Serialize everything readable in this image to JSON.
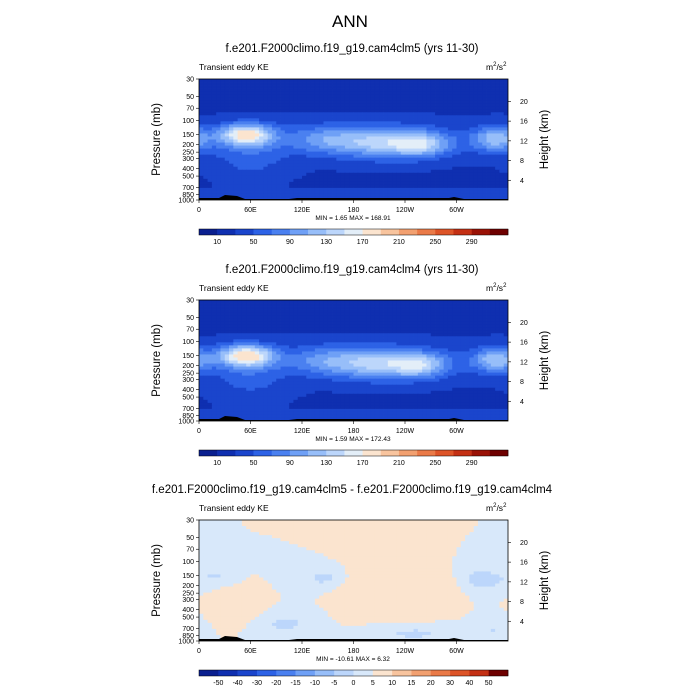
{
  "page": {
    "title": "ANN",
    "background": "#ffffff"
  },
  "chart_data": [
    {
      "type": "heatmap",
      "title": "f.e201.F2000climo.f19_g19.cam4clm5 (yrs 11-30)",
      "field_label": "Transient eddy KE",
      "units_base": "m",
      "units_exp1": "2",
      "units_mid": "/s",
      "units_exp2": "2",
      "ylabel": "Pressure (mb)",
      "ylabel_right": "Height (km)",
      "x_ticks": [
        "0",
        "60E",
        "120E",
        "180",
        "120W",
        "60W"
      ],
      "xlim": [
        0,
        360
      ],
      "y_ticks": [
        "30",
        "50",
        "70",
        "100",
        "150",
        "200",
        "250",
        "300",
        "400",
        "500",
        "700",
        "850",
        "1000"
      ],
      "y_scale": "log",
      "ylim": [
        1000,
        30
      ],
      "height_ticks": [
        "4",
        "8",
        "12",
        "16",
        "20"
      ],
      "stats": "MIN =   1.65   MAX = 168.91",
      "colorbar_labels": [
        "10",
        "50",
        "90",
        "130",
        "170",
        "210",
        "250",
        "290"
      ],
      "colorbar_colors": [
        "#0a1f8f",
        "#0f2fb0",
        "#1a45cc",
        "#2d62e6",
        "#4a80f0",
        "#6fa0f6",
        "#97bef9",
        "#bcd6fb",
        "#e3eef8",
        "#fbe4cf",
        "#f8c49e",
        "#f2a070",
        "#ea7a48",
        "#dd5428",
        "#c43014",
        "#9a1206",
        "#6e0000"
      ],
      "plot_levels": [
        0,
        10,
        30,
        50,
        70,
        90,
        110,
        130,
        150,
        170
      ],
      "plot_colors": [
        "#0d1f8a",
        "#0f2fb0",
        "#1a45cc",
        "#2d62e6",
        "#4a80f0",
        "#6fa0f6",
        "#97bef9",
        "#bcd6fb",
        "#e3eef8",
        "#fbe4cf"
      ],
      "features": [
        {
          "lon": 55,
          "p": 150,
          "amp": 140,
          "slon": 22,
          "sp": 0.22
        },
        {
          "lon": 215,
          "p": 190,
          "amp": 90,
          "slon": 40,
          "sp": 0.32
        },
        {
          "lon": 260,
          "p": 200,
          "amp": 70,
          "slon": 22,
          "sp": 0.25
        },
        {
          "lon": 345,
          "p": 170,
          "amp": 80,
          "slon": 18,
          "sp": 0.25
        },
        {
          "lon": 145,
          "p": 170,
          "amp": 45,
          "slon": 30,
          "sp": 0.3
        },
        {
          "lon": 60,
          "p": 300,
          "amp": 30,
          "slon": 30,
          "sp": 0.4
        }
      ]
    },
    {
      "type": "heatmap",
      "title": "f.e201.F2000climo.f19_g19.cam4clm4 (yrs 11-30)",
      "field_label": "Transient eddy KE",
      "units_base": "m",
      "units_exp1": "2",
      "units_mid": "/s",
      "units_exp2": "2",
      "ylabel": "Pressure (mb)",
      "ylabel_right": "Height (km)",
      "x_ticks": [
        "0",
        "60E",
        "120E",
        "180",
        "120W",
        "60W"
      ],
      "xlim": [
        0,
        360
      ],
      "y_ticks": [
        "30",
        "50",
        "70",
        "100",
        "150",
        "200",
        "250",
        "300",
        "400",
        "500",
        "700",
        "850",
        "1000"
      ],
      "y_scale": "log",
      "ylim": [
        1000,
        30
      ],
      "height_ticks": [
        "4",
        "8",
        "12",
        "16",
        "20"
      ],
      "stats": "MIN =   1.59   MAX = 172.43",
      "colorbar_labels": [
        "10",
        "50",
        "90",
        "130",
        "170",
        "210",
        "250",
        "290"
      ],
      "colorbar_colors": [
        "#0a1f8f",
        "#0f2fb0",
        "#1a45cc",
        "#2d62e6",
        "#4a80f0",
        "#6fa0f6",
        "#97bef9",
        "#bcd6fb",
        "#e3eef8",
        "#fbe4cf",
        "#f8c49e",
        "#f2a070",
        "#ea7a48",
        "#dd5428",
        "#c43014",
        "#9a1206",
        "#6e0000"
      ],
      "plot_levels": [
        0,
        10,
        30,
        50,
        70,
        90,
        110,
        130,
        150,
        170
      ],
      "plot_colors": [
        "#0d1f8a",
        "#0f2fb0",
        "#1a45cc",
        "#2d62e6",
        "#4a80f0",
        "#6fa0f6",
        "#97bef9",
        "#bcd6fb",
        "#e3eef8",
        "#fbe4cf"
      ],
      "features": [
        {
          "lon": 55,
          "p": 150,
          "amp": 150,
          "slon": 22,
          "sp": 0.22
        },
        {
          "lon": 210,
          "p": 190,
          "amp": 90,
          "slon": 40,
          "sp": 0.32
        },
        {
          "lon": 258,
          "p": 200,
          "amp": 72,
          "slon": 22,
          "sp": 0.25
        },
        {
          "lon": 345,
          "p": 170,
          "amp": 82,
          "slon": 18,
          "sp": 0.25
        },
        {
          "lon": 145,
          "p": 170,
          "amp": 40,
          "slon": 30,
          "sp": 0.3
        },
        {
          "lon": 60,
          "p": 300,
          "amp": 28,
          "slon": 30,
          "sp": 0.4
        }
      ]
    },
    {
      "type": "heatmap",
      "title": "f.e201.F2000climo.f19_g19.cam4clm5 - f.e201.F2000climo.f19_g19.cam4clm4",
      "field_label": "Transient eddy KE",
      "units_base": "m",
      "units_exp1": "2",
      "units_mid": "/s",
      "units_exp2": "2",
      "ylabel": "Pressure (mb)",
      "ylabel_right": "Height (km)",
      "x_ticks": [
        "0",
        "60E",
        "120E",
        "180",
        "120W",
        "60W"
      ],
      "xlim": [
        0,
        360
      ],
      "y_ticks": [
        "30",
        "50",
        "70",
        "100",
        "150",
        "200",
        "250",
        "300",
        "400",
        "500",
        "700",
        "850",
        "1000"
      ],
      "y_scale": "log",
      "ylim": [
        1000,
        30
      ],
      "height_ticks": [
        "4",
        "8",
        "12",
        "16",
        "20"
      ],
      "stats": "MIN = -10.61   MAX =   6.32",
      "colorbar_labels": [
        "-50",
        "-40",
        "-30",
        "-20",
        "-15",
        "-10",
        "-5",
        "0",
        "5",
        "10",
        "15",
        "20",
        "30",
        "40",
        "50"
      ],
      "colorbar_colors": [
        "#0a1f8f",
        "#0f2fb0",
        "#1a45cc",
        "#2d62e6",
        "#4a80f0",
        "#6fa0f6",
        "#97bef9",
        "#bcd6fb",
        "#d8e8fa",
        "#fbe4cf",
        "#f8c49e",
        "#f2a070",
        "#ea7a48",
        "#dd5428",
        "#c43014",
        "#6e0000"
      ],
      "plot_levels": [
        -10,
        -5,
        0
      ],
      "plot_colors": [
        "#97bef9",
        "#bcd6fb",
        "#d8e8fa",
        "#fbe4cf"
      ],
      "features": [
        {
          "lon": 150,
          "p": 160,
          "amp": -7,
          "slon": 22,
          "sp": 0.25
        },
        {
          "lon": 330,
          "p": 170,
          "amp": -8,
          "slon": 22,
          "sp": 0.25
        },
        {
          "lon": 20,
          "p": 150,
          "amp": -5,
          "slon": 12,
          "sp": 0.15
        },
        {
          "lon": 100,
          "p": 600,
          "amp": -6,
          "slon": 25,
          "sp": 0.25
        },
        {
          "lon": 250,
          "p": 800,
          "amp": -6,
          "slon": 35,
          "sp": 0.2
        },
        {
          "lon": 345,
          "p": 700,
          "amp": -5,
          "slon": 15,
          "sp": 0.3
        },
        {
          "lon": 40,
          "p": 400,
          "amp": 5,
          "slon": 22,
          "sp": 0.3
        },
        {
          "lon": 180,
          "p": 200,
          "amp": 5,
          "slon": 20,
          "sp": 0.5
        },
        {
          "lon": 290,
          "p": 200,
          "amp": 4,
          "slon": 15,
          "sp": 0.3
        },
        {
          "lon": 240,
          "p": 400,
          "amp": 4,
          "slon": 30,
          "sp": 0.3
        }
      ]
    }
  ]
}
